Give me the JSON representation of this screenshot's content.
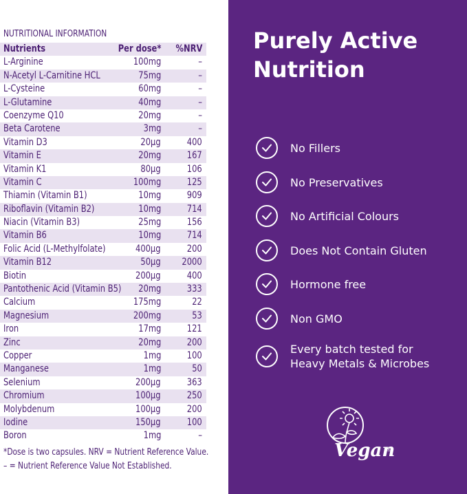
{
  "nutrition": {
    "title": "NUTRITIONAL INFORMATION",
    "headers": {
      "nutrient": "Nutrients",
      "dose": "Per dose*",
      "nrv": "%NRV"
    },
    "rows": [
      {
        "name": "L-Arginine",
        "dose": "100mg",
        "nrv": "–"
      },
      {
        "name": "N-Acetyl L-Carnitine HCL",
        "dose": "75mg",
        "nrv": "–"
      },
      {
        "name": "L-Cysteine",
        "dose": "60mg",
        "nrv": "–"
      },
      {
        "name": "L-Glutamine",
        "dose": "40mg",
        "nrv": "–"
      },
      {
        "name": "Coenzyme Q10",
        "dose": "20mg",
        "nrv": "–"
      },
      {
        "name": "Beta Carotene",
        "dose": "3mg",
        "nrv": "–"
      },
      {
        "name": "Vitamin D3",
        "dose": "20µg",
        "nrv": "400"
      },
      {
        "name": "Vitamin E",
        "dose": "20mg",
        "nrv": "167"
      },
      {
        "name": "Vitamin K1",
        "dose": "80µg",
        "nrv": "106"
      },
      {
        "name": "Vitamin C",
        "dose": "100mg",
        "nrv": "125"
      },
      {
        "name": "Thiamin (Vitamin B1)",
        "dose": "10mg",
        "nrv": "909"
      },
      {
        "name": "Riboflavin (Vitamin B2)",
        "dose": "10mg",
        "nrv": "714"
      },
      {
        "name": "Niacin (Vitamin B3)",
        "dose": "25mg",
        "nrv": "156"
      },
      {
        "name": "Vitamin B6",
        "dose": "10mg",
        "nrv": "714"
      },
      {
        "name": "Folic Acid (L-Methylfolate)",
        "dose": "400µg",
        "nrv": "200"
      },
      {
        "name": "Vitamin B12",
        "dose": "50µg",
        "nrv": "2000"
      },
      {
        "name": "Biotin",
        "dose": "200µg",
        "nrv": "400"
      },
      {
        "name": "Pantothenic Acid (Vitamin B5)",
        "dose": "20mg",
        "nrv": "333"
      },
      {
        "name": "Calcium",
        "dose": "175mg",
        "nrv": "22"
      },
      {
        "name": "Magnesium",
        "dose": "200mg",
        "nrv": "53"
      },
      {
        "name": "Iron",
        "dose": "17mg",
        "nrv": "121"
      },
      {
        "name": "Zinc",
        "dose": "20mg",
        "nrv": "200"
      },
      {
        "name": "Copper",
        "dose": "1mg",
        "nrv": "100"
      },
      {
        "name": "Manganese",
        "dose": "1mg",
        "nrv": "50"
      },
      {
        "name": "Selenium",
        "dose": "200µg",
        "nrv": "363"
      },
      {
        "name": "Chromium",
        "dose": "100µg",
        "nrv": "250"
      },
      {
        "name": "Molybdenum",
        "dose": "100µg",
        "nrv": "200"
      },
      {
        "name": "Iodine",
        "dose": "150µg",
        "nrv": "100"
      },
      {
        "name": "Boron",
        "dose": "1mg",
        "nrv": "–"
      }
    ],
    "footnote_1": "*Dose is two capsules. NRV = Nutrient Reference Value.",
    "footnote_2": "– = Nutrient Reference Value Not Established."
  },
  "panel": {
    "headline_line1": "Purely Active",
    "headline_line2": "Nutrition",
    "features": [
      {
        "line1": "No Fillers",
        "line2": ""
      },
      {
        "line1": "No Preservatives",
        "line2": ""
      },
      {
        "line1": "No Artificial Colours",
        "line2": ""
      },
      {
        "line1": "Does Not Contain Gluten",
        "line2": ""
      },
      {
        "line1": "Hormone free",
        "line2": ""
      },
      {
        "line1": "Non GMO",
        "line2": ""
      },
      {
        "line1": "Every batch tested for",
        "line2": "Heavy Metals & Microbes"
      }
    ],
    "logo_text": "Vegan",
    "logo_mark": "®",
    "check_icon": "check-circle-icon",
    "colors": {
      "background": "#5b2581",
      "shade": "#e9e1f0",
      "text": "#4b1f73"
    }
  }
}
